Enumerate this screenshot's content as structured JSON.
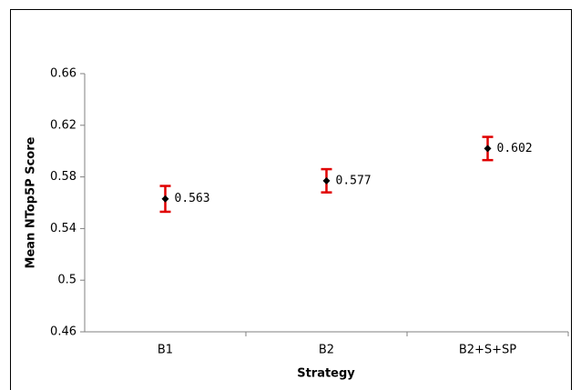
{
  "chart_data": {
    "type": "errorbar",
    "x_label": "Strategy",
    "y_label": "Mean NTop5P Score",
    "categories": [
      "B1",
      "B2",
      "B2+S+SP"
    ],
    "values": [
      0.563,
      0.577,
      0.602
    ],
    "errors": [
      0.01,
      0.009,
      0.009
    ],
    "color": "#000000",
    "error_color": "#e00000",
    "ylim": [
      0.46,
      0.66
    ],
    "yticks": [
      0.66,
      0.62,
      0.58,
      0.54,
      0.5,
      0.46
    ],
    "grid": false
  }
}
